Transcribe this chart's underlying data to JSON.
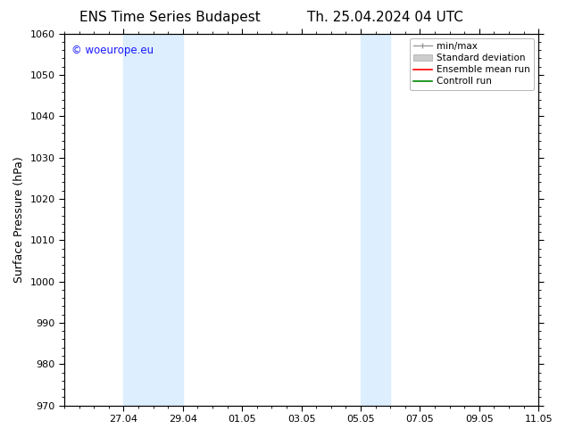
{
  "title_left": "ENS Time Series Budapest",
  "title_right": "Th. 25.04.2024 04 UTC",
  "ylabel": "Surface Pressure (hPa)",
  "ylim": [
    970,
    1060
  ],
  "yticks": [
    970,
    980,
    990,
    1000,
    1010,
    1020,
    1030,
    1040,
    1050,
    1060
  ],
  "xlim_start_days": 0,
  "xlim_end_days": 16,
  "xtick_labels": [
    "27.04",
    "29.04",
    "01.05",
    "03.05",
    "05.05",
    "07.05",
    "09.05",
    "11.05"
  ],
  "xtick_positions": [
    2,
    4,
    6,
    8,
    10,
    12,
    14,
    16
  ],
  "shaded_bands": [
    {
      "x_start": 2,
      "x_end": 4,
      "color": "#ddeeff"
    },
    {
      "x_start": 10,
      "x_end": 11,
      "color": "#ddeeff"
    }
  ],
  "watermark": "© woeurope.eu",
  "watermark_color": "#1a1aff",
  "background_color": "#ffffff",
  "plot_bg_color": "#ffffff",
  "legend_labels": [
    "min/max",
    "Standard deviation",
    "Ensemble mean run",
    "Controll run"
  ],
  "legend_colors": [
    "#999999",
    "#cccccc",
    "#ff0000",
    "#008800"
  ],
  "title_fontsize": 11,
  "axis_label_fontsize": 9,
  "tick_fontsize": 8,
  "legend_fontsize": 7.5,
  "watermark_fontsize": 8.5,
  "figsize": [
    6.34,
    4.9
  ],
  "dpi": 100
}
